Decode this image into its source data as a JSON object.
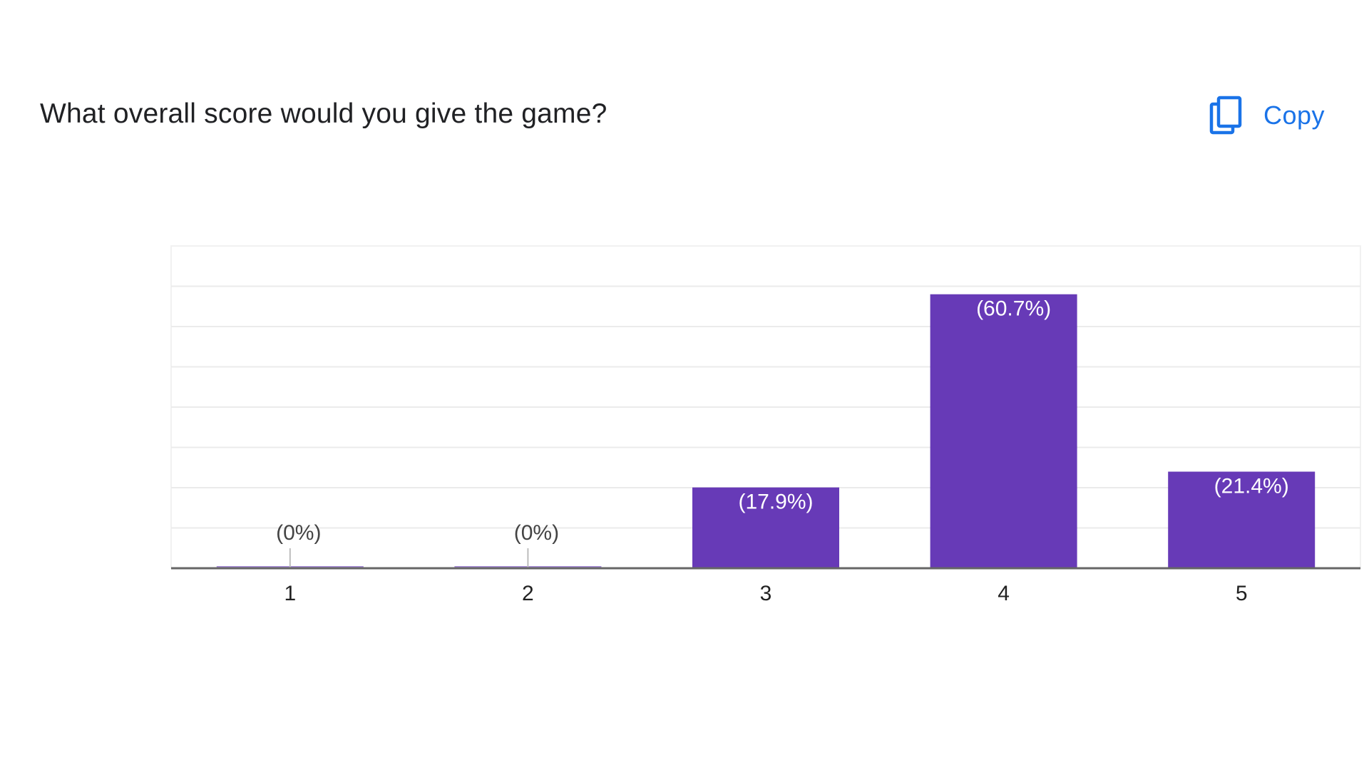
{
  "question": {
    "title": "What overall score would you give the game?"
  },
  "copy": {
    "label": "Copy",
    "icon": "copy-icon"
  },
  "colors": {
    "bar": "#673ab7",
    "accent": "#1a73e8",
    "grid": "#ebebeb",
    "axis": "#666666",
    "text": "#202124"
  },
  "chart_data": {
    "type": "bar",
    "categories": [
      "1",
      "2",
      "3",
      "4",
      "5"
    ],
    "values": [
      0,
      0,
      17.9,
      60.7,
      21.4
    ],
    "data_labels": [
      "(0%)",
      "(0%)",
      "(17.9%)",
      "(60.7%)",
      "(21.4%)"
    ],
    "title": "What overall score would you give the game?",
    "xlabel": "",
    "ylabel": "",
    "ylim": [
      0,
      71.4
    ],
    "grid": true,
    "legend": "none"
  }
}
